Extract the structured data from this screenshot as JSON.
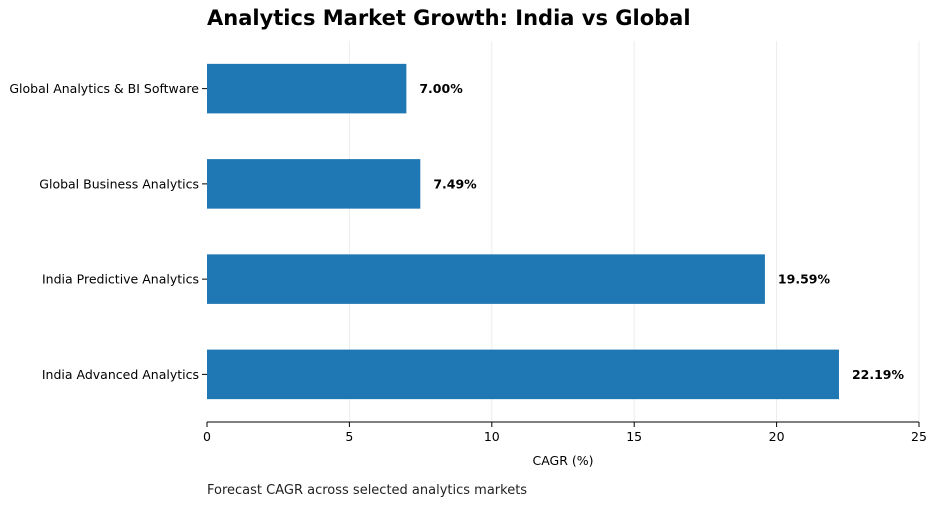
{
  "chart_data": {
    "type": "bar",
    "orientation": "horizontal",
    "title": "Analytics Market Growth: India vs Global",
    "xlabel": "CAGR (%)",
    "ylabel": "",
    "categories": [
      "Global Analytics & BI Software",
      "Global Business Analytics",
      "India Predictive Analytics",
      "India Advanced Analytics"
    ],
    "values": [
      7.0,
      7.49,
      19.59,
      22.19
    ],
    "value_labels": [
      "7.00%",
      "7.49%",
      "19.59%",
      "22.19%"
    ],
    "xlim": [
      0,
      25
    ],
    "xticks": [
      0,
      5,
      10,
      15,
      20,
      25
    ],
    "xtick_labels": [
      "0",
      "5",
      "10",
      "15",
      "20",
      "25"
    ],
    "grid": "vertical",
    "bar_color": "#1f77b4",
    "caption": "Forecast CAGR across selected analytics markets"
  }
}
